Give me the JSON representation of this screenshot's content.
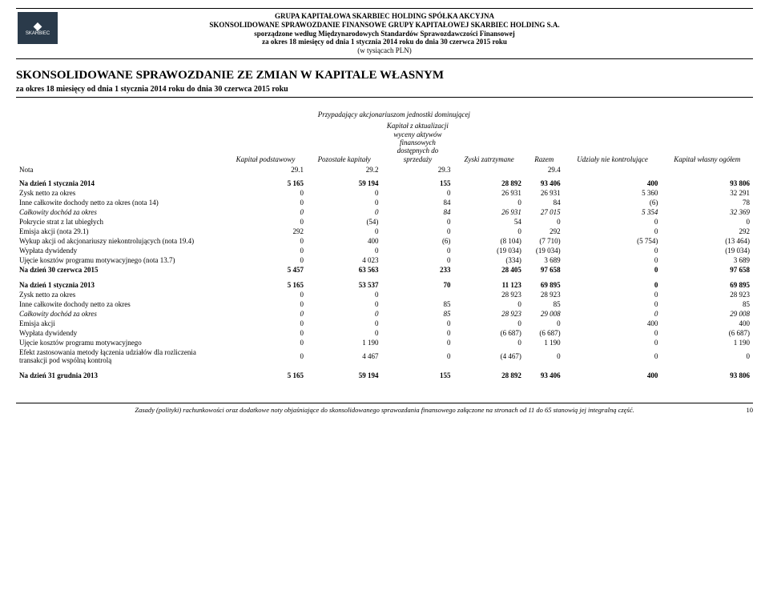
{
  "logo_text": "SKARBIEC",
  "header": {
    "line1": "GRUPA KAPITAŁOWA SKARBIEC HOLDING SPÓŁKA AKCYJNA",
    "line2": "SKONSOLIDOWANE SPRAWOZDANIE FINANSOWE GRUPY KAPITAŁOWEJ SKARBIEC HOLDING S.A.",
    "line3": "sporządzone według Międzynarodowych Standardów Sprawozdawczości Finansowej",
    "line4": "za okres 18 miesięcy od dnia 1 stycznia 2014 roku do dnia 30 czerwca 2015 roku",
    "line5": "(w tysiącach PLN)"
  },
  "title": "SKONSOLIDOWANE SPRAWOZDANIE ZE ZMIAN W KAPITALE WŁASNYM",
  "subtitle": "za okres 18 miesięcy od dnia 1 stycznia 2014 roku do dnia 30 czerwca 2015 roku",
  "cols": {
    "span_dom": "Przypadający akcjonariuszom jednostki dominującej",
    "c1": "Kapitał podstawowy",
    "c2": "Pozostałe kapitały",
    "c3": "Kapitał z aktualizacji wyceny aktywów finansowych dostępnych do sprzedaży",
    "c4": "Zyski zatrzymane",
    "c5": "Razem",
    "c6": "Udziały nie kontrolujące",
    "c7": "Kapitał własny ogółem",
    "nota": "Nota",
    "n1": "29.1",
    "n2": "29.2",
    "n3": "29.3",
    "n5": "29.4"
  },
  "rows2014": [
    {
      "label": "Na dzień 1 stycznia 2014",
      "bold": true,
      "v": [
        "5 165",
        "59 194",
        "155",
        "28 892",
        "93 406",
        "400",
        "93 806"
      ]
    },
    {
      "label": "Zysk netto za okres",
      "v": [
        "0",
        "0",
        "0",
        "26 931",
        "26 931",
        "5 360",
        "32 291"
      ]
    },
    {
      "label": "Inne całkowite dochody netto za okres (nota 14)",
      "v": [
        "0",
        "0",
        "84",
        "0",
        "84",
        "(6)",
        "78"
      ]
    },
    {
      "label": "Całkowity dochód za okres",
      "italic": true,
      "v": [
        "0",
        "0",
        "84",
        "26 931",
        "27 015",
        "5 354",
        "32 369"
      ]
    },
    {
      "label": "Pokrycie strat z lat ubiegłych",
      "v": [
        "0",
        "(54)",
        "0",
        "54",
        "0",
        "0",
        "0"
      ]
    },
    {
      "label": "Emisja akcji (nota 29.1)",
      "v": [
        "292",
        "0",
        "0",
        "0",
        "292",
        "0",
        "292"
      ]
    },
    {
      "label": "Wykup akcji od akcjonariuszy niekontrolujących (nota 19.4)",
      "v": [
        "0",
        "400",
        "(6)",
        "(8 104)",
        "(7 710)",
        "(5 754)",
        "(13 464)"
      ]
    },
    {
      "label": "Wypłata dywidendy",
      "v": [
        "0",
        "0",
        "0",
        "(19 034)",
        "(19 034)",
        "0",
        "(19 034)"
      ]
    },
    {
      "label": "Ujęcie kosztów programu motywacyjnego (nota 13.7)",
      "v": [
        "0",
        "4 023",
        "0",
        "(334)",
        "3 689",
        "0",
        "3 689"
      ]
    },
    {
      "label": "Na dzień 30 czerwca 2015",
      "bold": true,
      "v": [
        "5 457",
        "63 563",
        "233",
        "28 405",
        "97 658",
        "0",
        "97 658"
      ]
    }
  ],
  "rows2013": [
    {
      "label": "Na dzień 1 stycznia 2013",
      "bold": true,
      "v": [
        "5 165",
        "53 537",
        "70",
        "11 123",
        "69 895",
        "0",
        "69 895"
      ]
    },
    {
      "label": "Zysk netto za okres",
      "v": [
        "0",
        "0",
        "",
        "28 923",
        "28 923",
        "0",
        "28 923"
      ]
    },
    {
      "label": "Inne całkowite dochody netto za okres",
      "v": [
        "0",
        "0",
        "85",
        "0",
        "85",
        "0",
        "85"
      ]
    },
    {
      "label": "Całkowity dochód za okres",
      "italic": true,
      "v": [
        "0",
        "0",
        "85",
        "28 923",
        "29 008",
        "0",
        "29 008"
      ]
    },
    {
      "label": "Emisja akcji",
      "v": [
        "0",
        "0",
        "0",
        "0",
        "0",
        "400",
        "400"
      ]
    },
    {
      "label": "Wypłata dywidendy",
      "v": [
        "0",
        "0",
        "0",
        "(6 687)",
        "(6 687)",
        "0",
        "(6 687)"
      ]
    },
    {
      "label": "Ujęcie kosztów programu motywacyjnego",
      "v": [
        "0",
        "1 190",
        "0",
        "0",
        "1 190",
        "0",
        "1 190"
      ]
    },
    {
      "label": "Efekt zastosowania metody łączenia udziałów dla rozliczenia transakcji pod wspólną kontrolą",
      "v": [
        "0",
        "4 467",
        "0",
        "(4 467)",
        "0",
        "0",
        "0"
      ]
    },
    {
      "label": "Na dzień 31 grudnia 2013",
      "bold": true,
      "top": true,
      "v": [
        "5 165",
        "59 194",
        "155",
        "28 892",
        "93 406",
        "400",
        "93 806"
      ]
    }
  ],
  "footer_text": "Zasady (polityki) rachunkowości oraz dodatkowe noty objaśniające do skonsolidowanego sprawozdania finansowego załączone na stronach od 11 do 65 stanowią jej integralną część.",
  "page_num": "10"
}
